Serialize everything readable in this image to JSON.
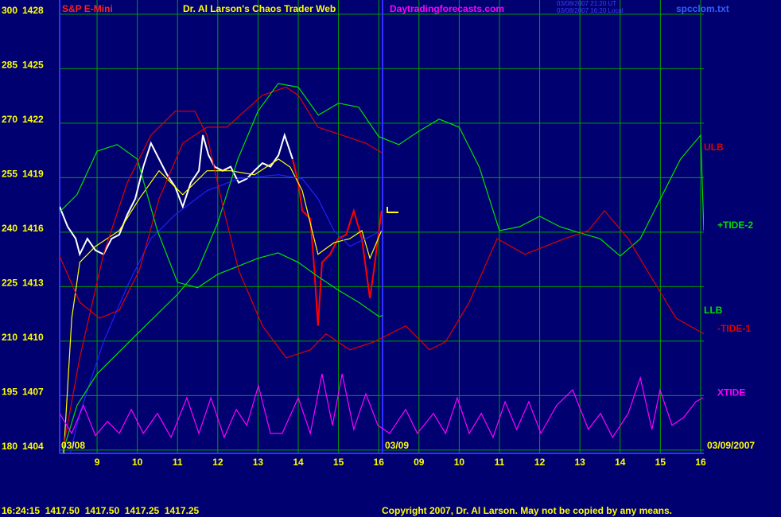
{
  "chart_data": {
    "type": "line",
    "symbol": "S&P E-Mini",
    "title": "Dr. Al Larson's Chaos Trader Web",
    "site": "Daytradingforecasts.com",
    "timestamp_ut": "03/08/2007 21:20 UT",
    "timestamp_local": "03/08/2007 16:20 Local",
    "file": "spcclom.txt",
    "date_labels": [
      "03/08",
      "03/09",
      "03/09/2007"
    ],
    "quote": "16:24:15  1417.50  1417.50  1417.25  1417.25",
    "copyright": "Copyright 2007, Dr. Al Larson. May not be copied by any means.",
    "xlim": [
      8.07,
      24.08
    ],
    "xticks": [
      9,
      10,
      11,
      12,
      13,
      14,
      15,
      16,
      {
        "value": 17,
        "label": "09"
      },
      {
        "value": 18,
        "label": "10"
      },
      {
        "value": 19,
        "label": "11"
      },
      {
        "value": 20,
        "label": "12"
      },
      {
        "value": 21,
        "label": "13"
      },
      {
        "value": 22,
        "label": "14"
      },
      {
        "value": 23,
        "label": "15"
      },
      {
        "value": 24,
        "label": "16"
      }
    ],
    "ylim": [
      179.1,
      303.9
    ],
    "yticks": [
      300,
      285,
      270,
      255,
      240,
      225,
      210,
      195,
      180
    ],
    "y2lim": [
      1403.82,
      1428.78
    ],
    "y2ticks": [
      1428,
      1425,
      1422,
      1419,
      1416,
      1413,
      1410,
      1407,
      1404
    ],
    "grid": true,
    "grid_color": "#00a000",
    "background": "#000070",
    "text_color": "#ffff00",
    "series": [
      {
        "color": "#ffffff",
        "x": [
          8.07,
          8.27,
          8.47,
          8.57,
          8.76,
          8.96,
          9.16,
          9.36,
          9.55,
          9.75,
          9.95,
          10.15,
          10.34,
          10.54,
          10.74,
          10.94,
          11.13,
          11.33,
          11.53,
          11.63,
          11.77,
          11.92,
          12.12,
          12.32,
          12.52,
          12.72,
          12.91,
          13.11,
          13.31,
          13.51,
          13.66,
          13.86
        ],
        "values": [
          247.0,
          241.5,
          238.2,
          233.9,
          238.2,
          235.0,
          233.9,
          238.2,
          239.3,
          244.8,
          249.2,
          258.0,
          264.5,
          260.1,
          255.8,
          252.5,
          247.0,
          253.6,
          256.9,
          266.7,
          261.2,
          258.0,
          256.9,
          258.0,
          253.6,
          254.7,
          256.9,
          259.0,
          258.0,
          261.2,
          266.7,
          260.1
        ]
      },
      {
        "color": "#ff0000",
        "x": [
          13.86,
          14.0,
          14.1,
          14.3,
          14.4,
          14.49,
          14.59,
          14.79,
          14.99,
          15.19,
          15.38,
          15.58,
          15.78,
          15.88,
          16.07
        ],
        "values": [
          260.1,
          253.6,
          245.9,
          243.7,
          229.5,
          214.2,
          231.7,
          233.9,
          238.2,
          239.3,
          245.9,
          238.2,
          221.8,
          229.5,
          245.9
        ]
      },
      {
        "color": "#ffff00",
        "x": [
          8.17,
          8.37,
          8.57,
          8.96,
          9.55,
          10.05,
          10.54,
          11.13,
          11.73,
          12.32,
          12.91,
          13.51,
          13.8,
          14.1,
          14.49,
          14.89,
          15.28,
          15.58,
          15.78,
          16.07
        ],
        "values": [
          179.1,
          216.3,
          231.7,
          236.1,
          240.4,
          249.2,
          256.9,
          250.3,
          256.9,
          256.9,
          255.8,
          260.1,
          257.9,
          251.4,
          233.9,
          237.1,
          238.2,
          240.4,
          232.8,
          240.4
        ]
      },
      {
        "color": "#2020ff",
        "x": [
          8.33,
          8.57,
          9.16,
          9.75,
          10.34,
          10.94,
          11.73,
          12.52,
          13.51,
          14.1,
          14.49,
          14.89,
          15.28,
          15.68,
          16.07
        ],
        "values": [
          179.1,
          190.1,
          209.8,
          225.1,
          238.2,
          244.8,
          251.4,
          254.7,
          255.8,
          254.7,
          249.2,
          240.4,
          236.1,
          238.2,
          240.4
        ]
      },
      {
        "name": "ULB",
        "color": "#e00000",
        "x": [
          8.07,
          8.57,
          9.06,
          9.55,
          10.05,
          10.54,
          11.13,
          11.73,
          12.22,
          13.11,
          13.7,
          14.0,
          14.49,
          15.09,
          15.68,
          16.07
        ],
        "values": [
          233.4,
          220.7,
          216.3,
          218.5,
          229.5,
          249.2,
          264.5,
          268.9,
          268.9,
          277.7,
          279.9,
          277.7,
          268.9,
          266.7,
          264.5,
          261.9
        ]
      },
      {
        "name": "+TIDE-2",
        "color": "#00e000",
        "x": [
          8.15,
          8.5,
          9.0,
          10.0,
          11.0,
          11.5,
          12.0,
          12.5,
          13.0,
          13.5,
          14.0,
          14.5,
          15.0,
          15.5,
          16.0,
          16.5,
          17.0,
          17.5,
          18.0,
          18.5,
          19.0,
          19.5,
          20.0,
          20.5,
          21.0,
          21.5,
          22.0,
          22.5,
          23.0,
          23.5,
          24.0,
          24.08
        ],
        "values": [
          179.5,
          192.3,
          201.0,
          212.0,
          222.9,
          229.5,
          242.6,
          260.1,
          273.3,
          280.9,
          279.9,
          272.2,
          275.5,
          274.4,
          266.3,
          264.1,
          267.8,
          271.1,
          268.9,
          257.9,
          240.4,
          241.5,
          244.4,
          241.5,
          239.8,
          238.2,
          233.4,
          238.2,
          249.2,
          260.1,
          266.7,
          240.4
        ]
      },
      {
        "name": "LLB",
        "color": "#00e000",
        "x": [
          8.1,
          8.5,
          9.0,
          9.5,
          10.0,
          10.5,
          11.0,
          11.5,
          12.0,
          12.5,
          13.0,
          13.5,
          14.0,
          14.5,
          15.0,
          15.5,
          16.0,
          16.1
        ],
        "values": [
          245.9,
          250.3,
          262.3,
          264.1,
          260.1,
          240.4,
          226.2,
          224.7,
          228.4,
          230.6,
          232.8,
          234.3,
          231.7,
          227.7,
          224.0,
          220.7,
          216.8,
          217.0
        ]
      },
      {
        "name": "-TIDE-1",
        "color": "#e00000",
        "x": [
          8.17,
          8.57,
          9.16,
          9.75,
          10.34,
          10.94,
          11.43,
          11.73,
          12.13,
          12.52,
          13.11,
          13.7,
          14.3,
          14.69,
          15.28,
          15.88,
          16.67,
          17.26,
          17.66,
          18.25,
          18.94,
          19.63,
          20.62,
          21.21,
          21.61,
          22.2,
          22.79,
          23.39,
          24.08
        ],
        "values": [
          181.3,
          205.4,
          233.9,
          253.6,
          266.7,
          273.3,
          273.3,
          266.7,
          247.0,
          229.5,
          214.2,
          205.4,
          207.6,
          212.0,
          207.6,
          209.8,
          214.2,
          207.6,
          209.8,
          220.7,
          238.2,
          233.9,
          238.2,
          240.4,
          245.9,
          238.2,
          227.3,
          216.3,
          212.0
        ]
      },
      {
        "name": "XTIDE",
        "color": "#ff00ff",
        "x": [
          8.07,
          8.37,
          8.66,
          8.96,
          9.26,
          9.55,
          9.85,
          10.15,
          10.5,
          10.84,
          11.23,
          11.53,
          11.83,
          12.16,
          12.46,
          12.72,
          13.01,
          13.31,
          13.6,
          14.0,
          14.3,
          14.59,
          14.85,
          15.09,
          15.38,
          15.68,
          15.98,
          16.27,
          16.67,
          16.96,
          17.36,
          17.66,
          17.95,
          18.25,
          18.55,
          18.84,
          19.14,
          19.43,
          19.73,
          20.03,
          20.42,
          20.82,
          21.21,
          21.51,
          21.81,
          22.2,
          22.5,
          22.79,
          22.99,
          23.29,
          23.58,
          23.88,
          24.06
        ],
        "values": [
          190.1,
          184.6,
          192.3,
          184.0,
          187.9,
          184.6,
          191.2,
          184.6,
          190.1,
          183.5,
          194.4,
          184.6,
          194.4,
          183.5,
          191.2,
          186.8,
          197.7,
          184.6,
          184.6,
          194.4,
          184.6,
          201.0,
          186.8,
          201.0,
          185.7,
          195.5,
          186.8,
          184.6,
          191.2,
          184.6,
          190.1,
          184.6,
          194.4,
          184.6,
          190.1,
          183.5,
          193.3,
          185.7,
          193.3,
          184.6,
          192.3,
          196.6,
          185.7,
          190.1,
          183.5,
          190.1,
          199.9,
          185.7,
          196.6,
          186.8,
          189.0,
          193.3,
          194.4
        ]
      }
    ]
  }
}
